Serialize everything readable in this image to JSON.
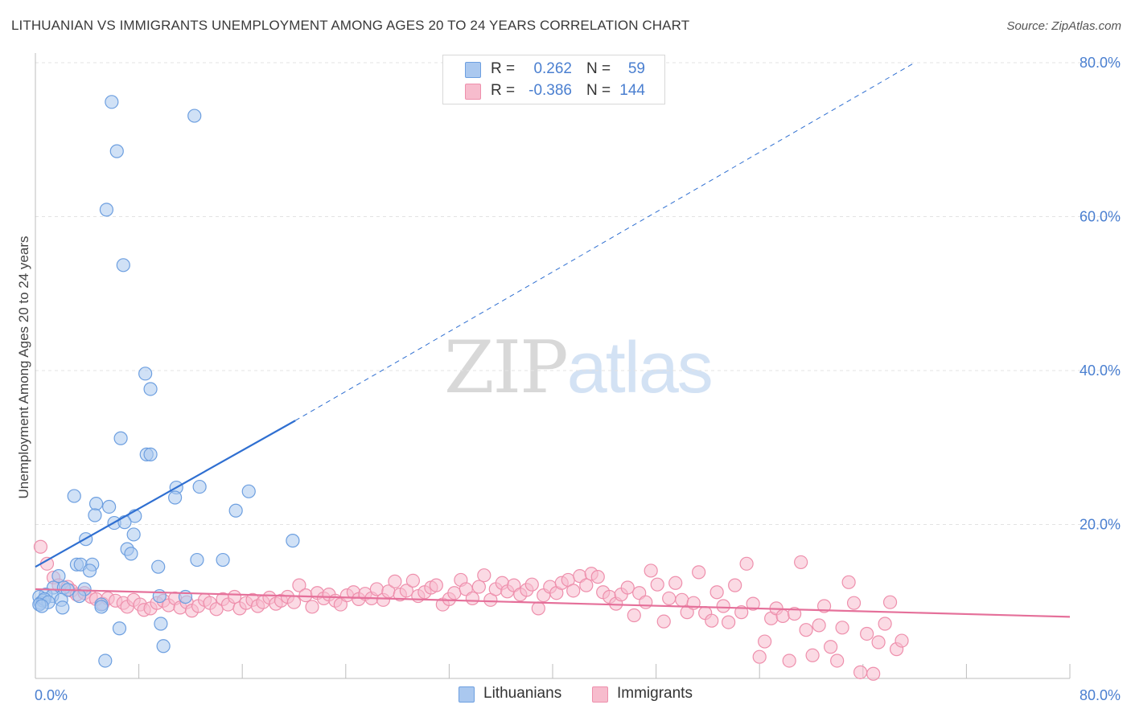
{
  "header": {
    "title": "LITHUANIAN VS IMMIGRANTS UNEMPLOYMENT AMONG AGES 20 TO 24 YEARS CORRELATION CHART",
    "source": "Source: ZipAtlas.com"
  },
  "watermark": {
    "zip": "ZIP",
    "atlas": "atlas"
  },
  "legend": {
    "rows": [
      {
        "r_label": "R =",
        "r_value": "0.262",
        "n_label": "N =",
        "n_value": "59"
      },
      {
        "r_label": "R =",
        "r_value": "-0.386",
        "n_label": "N =",
        "n_value": "144"
      }
    ]
  },
  "chart_data": {
    "type": "scatter",
    "title": "LITHUANIAN VS IMMIGRANTS UNEMPLOYMENT AMONG AGES 20 TO 24 YEARS CORRELATION CHART",
    "xlabel": "",
    "ylabel": "Unemployment Among Ages 20 to 24 years",
    "xlim": [
      0,
      80
    ],
    "ylim": [
      0,
      80
    ],
    "x_tick_labels": [
      "0.0%",
      "80.0%"
    ],
    "y_tick_labels": [
      "20.0%",
      "40.0%",
      "60.0%",
      "80.0%"
    ],
    "y_ticks": [
      20,
      40,
      60,
      80
    ],
    "grid": true,
    "legend_position": "top-center",
    "colors": {
      "lithuanians_fill": "#aac8ef",
      "lithuanians_stroke": "#6d9fe0",
      "lithuanians_line": "#2f6fd1",
      "immigrants_fill": "#f7bccd",
      "immigrants_stroke": "#ee8fac",
      "immigrants_line": "#e5709a",
      "tick_text": "#4a7fd0"
    },
    "series": [
      {
        "name": "Lithuanians",
        "r": 0.262,
        "n": 59,
        "trend": {
          "x": [
            0,
            20.1
          ],
          "y": [
            14.5,
            33.5
          ]
        },
        "trend_extended": {
          "x": [
            20.1,
            68.0
          ],
          "y": [
            33.5,
            80.0
          ]
        },
        "points": [
          [
            5.9,
            74.9
          ],
          [
            12.3,
            73.1
          ],
          [
            6.3,
            68.5
          ],
          [
            5.5,
            60.9
          ],
          [
            6.8,
            53.7
          ],
          [
            8.5,
            39.6
          ],
          [
            8.9,
            37.6
          ],
          [
            6.6,
            31.2
          ],
          [
            8.6,
            29.1
          ],
          [
            8.9,
            29.1
          ],
          [
            10.9,
            24.8
          ],
          [
            12.7,
            24.9
          ],
          [
            16.5,
            24.3
          ],
          [
            3.0,
            23.7
          ],
          [
            4.7,
            22.7
          ],
          [
            5.7,
            22.3
          ],
          [
            10.8,
            23.5
          ],
          [
            15.5,
            21.8
          ],
          [
            4.6,
            21.2
          ],
          [
            7.7,
            21.1
          ],
          [
            6.1,
            20.2
          ],
          [
            6.9,
            20.3
          ],
          [
            7.6,
            18.7
          ],
          [
            3.9,
            18.1
          ],
          [
            7.1,
            16.8
          ],
          [
            7.4,
            16.2
          ],
          [
            19.9,
            17.9
          ],
          [
            12.5,
            15.4
          ],
          [
            14.5,
            15.4
          ],
          [
            3.2,
            14.8
          ],
          [
            3.5,
            14.8
          ],
          [
            4.4,
            14.8
          ],
          [
            9.5,
            14.5
          ],
          [
            4.2,
            14.0
          ],
          [
            1.8,
            13.3
          ],
          [
            1.4,
            11.8
          ],
          [
            2.2,
            11.8
          ],
          [
            2.5,
            11.5
          ],
          [
            3.8,
            11.6
          ],
          [
            0.8,
            10.9
          ],
          [
            0.3,
            10.6
          ],
          [
            1.3,
            10.7
          ],
          [
            3.4,
            10.7
          ],
          [
            2.0,
            10.2
          ],
          [
            9.6,
            10.7
          ],
          [
            11.6,
            10.6
          ],
          [
            0.4,
            9.8
          ],
          [
            0.6,
            10.1
          ],
          [
            0.7,
            10.3
          ],
          [
            1.0,
            9.9
          ],
          [
            0.3,
            9.6
          ],
          [
            0.5,
            9.4
          ],
          [
            2.1,
            9.2
          ],
          [
            5.1,
            9.6
          ],
          [
            5.1,
            9.3
          ],
          [
            9.7,
            7.1
          ],
          [
            6.5,
            6.5
          ],
          [
            9.9,
            4.2
          ],
          [
            5.4,
            2.3
          ]
        ]
      },
      {
        "name": "Immigrants",
        "r": -0.386,
        "n": 144,
        "trend": {
          "x": [
            0,
            80
          ],
          "y": [
            11.6,
            8.0
          ]
        },
        "points": [
          [
            0.4,
            17.1
          ],
          [
            0.9,
            14.9
          ],
          [
            1.4,
            13.1
          ],
          [
            1.8,
            12.1
          ],
          [
            2.5,
            11.9
          ],
          [
            2.8,
            11.4
          ],
          [
            3.2,
            10.9
          ],
          [
            3.8,
            11.1
          ],
          [
            4.3,
            10.6
          ],
          [
            4.7,
            10.3
          ],
          [
            5.2,
            9.7
          ],
          [
            5.6,
            10.4
          ],
          [
            6.2,
            10.1
          ],
          [
            6.8,
            9.8
          ],
          [
            7.1,
            9.3
          ],
          [
            7.6,
            10.2
          ],
          [
            8.1,
            9.6
          ],
          [
            8.4,
            8.9
          ],
          [
            8.9,
            9.1
          ],
          [
            9.4,
            9.8
          ],
          [
            9.9,
            10.1
          ],
          [
            10.3,
            9.5
          ],
          [
            10.8,
            10.4
          ],
          [
            11.2,
            9.2
          ],
          [
            11.7,
            9.9
          ],
          [
            12.1,
            8.8
          ],
          [
            12.6,
            9.4
          ],
          [
            13.1,
            10.2
          ],
          [
            13.5,
            9.8
          ],
          [
            14.0,
            9.0
          ],
          [
            14.5,
            10.3
          ],
          [
            14.9,
            9.6
          ],
          [
            15.4,
            10.6
          ],
          [
            15.8,
            9.1
          ],
          [
            16.3,
            9.8
          ],
          [
            16.8,
            10.2
          ],
          [
            17.2,
            9.4
          ],
          [
            17.6,
            9.9
          ],
          [
            18.1,
            10.5
          ],
          [
            18.6,
            9.7
          ],
          [
            19.0,
            10.1
          ],
          [
            19.5,
            10.6
          ],
          [
            20.0,
            9.9
          ],
          [
            20.4,
            12.1
          ],
          [
            20.9,
            10.8
          ],
          [
            21.4,
            9.3
          ],
          [
            21.8,
            11.1
          ],
          [
            22.3,
            10.4
          ],
          [
            22.7,
            10.9
          ],
          [
            23.2,
            10.1
          ],
          [
            23.6,
            9.6
          ],
          [
            24.1,
            10.8
          ],
          [
            24.6,
            11.2
          ],
          [
            25.0,
            10.3
          ],
          [
            25.5,
            11.0
          ],
          [
            26.0,
            10.4
          ],
          [
            26.4,
            11.6
          ],
          [
            26.9,
            10.2
          ],
          [
            27.3,
            11.3
          ],
          [
            27.8,
            12.6
          ],
          [
            28.2,
            10.9
          ],
          [
            28.7,
            11.4
          ],
          [
            29.2,
            12.7
          ],
          [
            29.6,
            10.7
          ],
          [
            30.1,
            11.2
          ],
          [
            30.6,
            11.8
          ],
          [
            31.0,
            12.1
          ],
          [
            31.5,
            9.6
          ],
          [
            32.0,
            10.3
          ],
          [
            32.4,
            11.1
          ],
          [
            32.9,
            12.8
          ],
          [
            33.3,
            11.6
          ],
          [
            33.8,
            10.4
          ],
          [
            34.3,
            11.9
          ],
          [
            34.7,
            13.4
          ],
          [
            35.2,
            10.2
          ],
          [
            35.6,
            11.6
          ],
          [
            36.1,
            12.4
          ],
          [
            36.5,
            11.3
          ],
          [
            37.0,
            12.1
          ],
          [
            37.5,
            10.9
          ],
          [
            38.0,
            11.5
          ],
          [
            38.4,
            12.2
          ],
          [
            38.9,
            9.1
          ],
          [
            39.3,
            10.8
          ],
          [
            39.8,
            11.9
          ],
          [
            40.3,
            11.1
          ],
          [
            40.7,
            12.4
          ],
          [
            41.2,
            12.8
          ],
          [
            41.6,
            11.4
          ],
          [
            42.1,
            13.3
          ],
          [
            42.6,
            12.1
          ],
          [
            43.0,
            13.6
          ],
          [
            43.5,
            13.2
          ],
          [
            43.9,
            11.2
          ],
          [
            44.4,
            10.6
          ],
          [
            44.9,
            9.7
          ],
          [
            45.3,
            10.9
          ],
          [
            45.8,
            11.8
          ],
          [
            46.3,
            8.2
          ],
          [
            46.7,
            11.1
          ],
          [
            47.2,
            9.9
          ],
          [
            47.6,
            14.0
          ],
          [
            48.1,
            12.2
          ],
          [
            48.6,
            7.4
          ],
          [
            49.0,
            10.4
          ],
          [
            49.5,
            12.4
          ],
          [
            50.0,
            10.2
          ],
          [
            50.4,
            8.6
          ],
          [
            50.9,
            9.8
          ],
          [
            51.3,
            13.8
          ],
          [
            51.8,
            8.5
          ],
          [
            52.3,
            7.5
          ],
          [
            52.7,
            11.2
          ],
          [
            53.2,
            9.4
          ],
          [
            53.6,
            7.3
          ],
          [
            54.1,
            12.1
          ],
          [
            54.6,
            8.6
          ],
          [
            55.0,
            14.9
          ],
          [
            55.5,
            9.7
          ],
          [
            56.0,
            2.8
          ],
          [
            56.4,
            4.8
          ],
          [
            56.9,
            7.8
          ],
          [
            57.3,
            9.1
          ],
          [
            57.8,
            8.1
          ],
          [
            58.3,
            2.3
          ],
          [
            58.7,
            8.4
          ],
          [
            59.2,
            15.1
          ],
          [
            59.6,
            6.3
          ],
          [
            60.1,
            3.0
          ],
          [
            60.6,
            6.9
          ],
          [
            61.0,
            9.4
          ],
          [
            61.5,
            4.1
          ],
          [
            62.0,
            2.3
          ],
          [
            62.4,
            6.6
          ],
          [
            62.9,
            12.5
          ],
          [
            63.3,
            9.8
          ],
          [
            63.8,
            0.8
          ],
          [
            64.3,
            5.8
          ],
          [
            64.8,
            0.6
          ],
          [
            65.2,
            4.7
          ],
          [
            65.7,
            7.1
          ],
          [
            66.1,
            9.9
          ],
          [
            66.6,
            3.8
          ],
          [
            67.0,
            4.9
          ]
        ]
      }
    ]
  },
  "bottom_legend": {
    "items": [
      "Lithuanians",
      "Immigrants"
    ]
  }
}
